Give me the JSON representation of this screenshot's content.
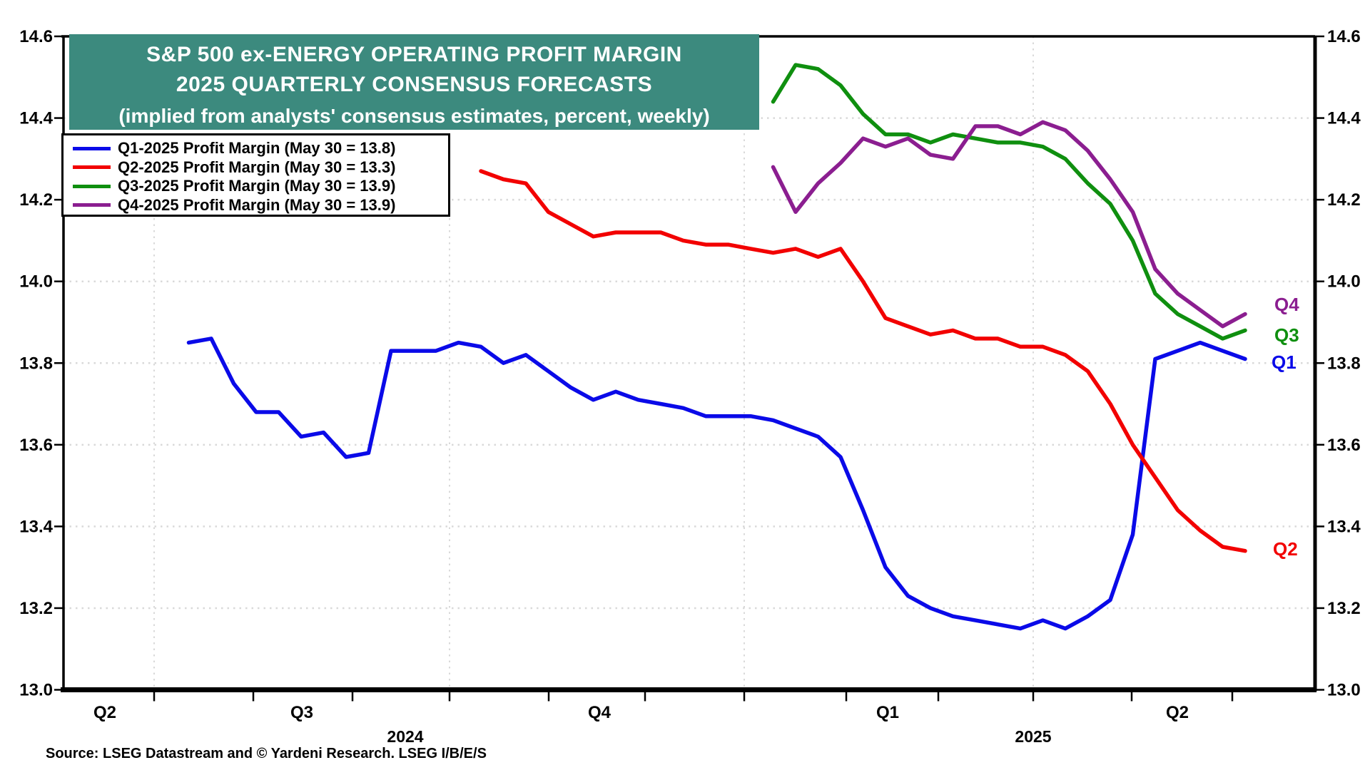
{
  "title": {
    "line1": "S&P 500 ex-ENERGY OPERATING PROFIT MARGIN",
    "line2": "2025 QUARTERLY CONSENSUS FORECASTS",
    "line3": "(implied from analysts' consensus estimates, percent, weekly)",
    "bg_color": "#3c8a7e",
    "text_color": "#ffffff"
  },
  "legend": {
    "items": [
      {
        "label": "Q1-2025 Profit Margin (May 30 = 13.8)",
        "color": "#0a0ae8"
      },
      {
        "label": "Q2-2025 Profit Margin (May 30 = 13.3)",
        "color": "#f20000"
      },
      {
        "label": "Q3-2025 Profit Margin (May 30 = 13.9)",
        "color": "#0f8f0f"
      },
      {
        "label": "Q4-2025 Profit Margin (May 30 = 13.9)",
        "color": "#8b1e90"
      }
    ]
  },
  "source": {
    "text": "Source: LSEG Datastream and © Yardeni Research. LSEG I/B/E/S"
  },
  "axis": {
    "grid_color": "#d9d9d9",
    "axis_color": "#000000",
    "x_quarter_labels": [
      "Q2",
      "Q3",
      "Q4",
      "Q1",
      "Q2"
    ],
    "x_year_labels": [
      "2024",
      "2025"
    ]
  },
  "chart_data": {
    "type": "line",
    "title": "S&P 500 ex-ENERGY OPERATING PROFIT MARGIN",
    "subtitle": "2025 QUARTERLY CONSENSUS FORECASTS",
    "note": "implied from analysts' consensus estimates, percent, weekly",
    "ylim": [
      13.0,
      14.6
    ],
    "y_tick_step": 0.2,
    "x_range": "Jun 2024 - Jun 2025",
    "frequency": "weekly",
    "grid": "dotted horizontal at each 0.2; dashed vertical at quarter starts",
    "legend_position": "top-left box",
    "series": [
      {
        "name": "Q1-2025 Profit Margin",
        "end_label": "Q1",
        "color": "#0a0ae8",
        "latest_note": "May 30 = 13.8",
        "start_week": "2024-07-05",
        "end_week": "2025-05-30",
        "week_offset": 0,
        "values": [
          13.85,
          13.86,
          13.75,
          13.68,
          13.68,
          13.62,
          13.63,
          13.57,
          13.58,
          13.83,
          13.83,
          13.83,
          13.85,
          13.84,
          13.8,
          13.82,
          13.78,
          13.74,
          13.71,
          13.73,
          13.71,
          13.7,
          13.69,
          13.67,
          13.67,
          13.67,
          13.66,
          13.64,
          13.62,
          13.57,
          13.44,
          13.3,
          13.23,
          13.2,
          13.18,
          13.17,
          13.16,
          13.15,
          13.17,
          13.15,
          13.18,
          13.22,
          13.38,
          13.81,
          13.83,
          13.85,
          13.83,
          13.81
        ]
      },
      {
        "name": "Q2-2025 Profit Margin",
        "end_label": "Q2",
        "color": "#f20000",
        "latest_note": "May 30 = 13.3",
        "start_week": "2024-10-04",
        "end_week": "2025-05-30",
        "week_offset": 13,
        "values": [
          14.27,
          14.25,
          14.24,
          14.17,
          14.14,
          14.11,
          14.12,
          14.12,
          14.12,
          14.1,
          14.09,
          14.09,
          14.08,
          14.07,
          14.08,
          14.06,
          14.08,
          14.0,
          13.91,
          13.89,
          13.87,
          13.88,
          13.86,
          13.86,
          13.84,
          13.84,
          13.82,
          13.78,
          13.7,
          13.6,
          13.52,
          13.44,
          13.39,
          13.35,
          13.34
        ]
      },
      {
        "name": "Q3-2025 Profit Margin",
        "end_label": "Q3",
        "color": "#0f8f0f",
        "latest_note": "May 30 = 13.9",
        "start_week": "2025-01-03",
        "end_week": "2025-05-30",
        "week_offset": 26,
        "values": [
          14.44,
          14.53,
          14.52,
          14.48,
          14.41,
          14.36,
          14.36,
          14.34,
          14.36,
          14.35,
          14.34,
          14.34,
          14.33,
          14.3,
          14.24,
          14.19,
          14.1,
          13.97,
          13.92,
          13.89,
          13.86,
          13.88
        ]
      },
      {
        "name": "Q4-2025 Profit Margin",
        "end_label": "Q4",
        "color": "#8b1e90",
        "latest_note": "May 30 = 13.9",
        "start_week": "2025-01-03",
        "end_week": "2025-05-30",
        "week_offset": 26,
        "values": [
          14.28,
          14.17,
          14.24,
          14.29,
          14.35,
          14.33,
          14.35,
          14.31,
          14.3,
          14.38,
          14.38,
          14.36,
          14.39,
          14.37,
          14.32,
          14.25,
          14.17,
          14.03,
          13.97,
          13.93,
          13.89,
          13.92
        ]
      }
    ]
  }
}
